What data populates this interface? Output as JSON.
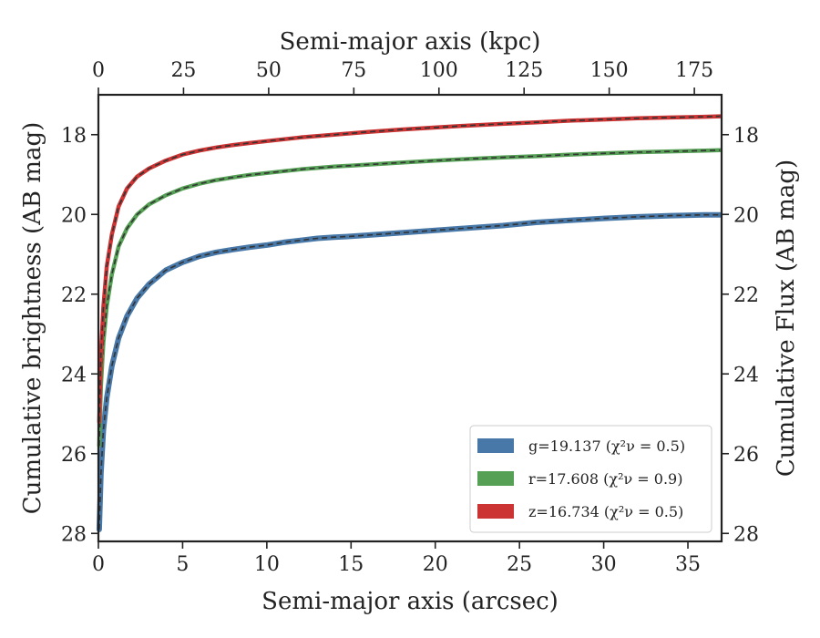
{
  "chart_data": {
    "type": "line",
    "xlabel": "Semi-major axis (arcsec)",
    "x2label": "Semi-major axis (kpc)",
    "ylabel": "Cumulative brightness (AB mag)",
    "y2label": "Cumulative Flux (AB mag)",
    "xlim": [
      0,
      37
    ],
    "x2lim": [
      0,
      183
    ],
    "ylim": [
      28.2,
      17.0
    ],
    "y_inverted": true,
    "xticks": [
      0,
      5,
      10,
      15,
      20,
      25,
      30,
      35
    ],
    "x2ticks": [
      0,
      25,
      50,
      75,
      100,
      125,
      150,
      175
    ],
    "yticks": [
      18,
      20,
      22,
      24,
      26,
      28
    ],
    "legend_position": "lower-right",
    "grid": false,
    "model_line": {
      "style": "dashed",
      "color": "#333333"
    },
    "series": [
      {
        "name": "g=19.137",
        "chi_label": "(χ²ν = 0.5)",
        "color": "#4878a8",
        "x": [
          0.05,
          0.15,
          0.3,
          0.5,
          0.8,
          1.2,
          1.7,
          2.3,
          3.0,
          4.0,
          5.0,
          6.0,
          7.0,
          8.0,
          9.0,
          10.0,
          11.0,
          12.0,
          13.0,
          14.0,
          15.0,
          16.0,
          18.0,
          20.0,
          22.0,
          24.0,
          26.0,
          28.0,
          30.0,
          32.0,
          34.0,
          36.0,
          36.9
        ],
        "y": [
          27.9,
          26.5,
          25.4,
          24.6,
          23.8,
          23.1,
          22.55,
          22.1,
          21.75,
          21.4,
          21.2,
          21.05,
          20.95,
          20.88,
          20.82,
          20.77,
          20.7,
          20.65,
          20.6,
          20.57,
          20.55,
          20.52,
          20.46,
          20.4,
          20.34,
          20.28,
          20.2,
          20.15,
          20.1,
          20.06,
          20.03,
          20.01,
          20.01
        ]
      },
      {
        "name": "r=17.608",
        "chi_label": "(χ²ν = 0.9)",
        "color": "#55a055",
        "x": [
          0.05,
          0.15,
          0.3,
          0.5,
          0.8,
          1.2,
          1.7,
          2.3,
          3.0,
          4.0,
          5.0,
          6.0,
          7.0,
          8.0,
          9.0,
          10.0,
          12.0,
          14.0,
          16.0,
          18.0,
          20.0,
          22.0,
          24.0,
          26.0,
          28.0,
          30.0,
          32.0,
          34.0,
          36.0,
          36.9
        ],
        "y": [
          25.8,
          24.3,
          23.2,
          22.3,
          21.5,
          20.8,
          20.35,
          20.0,
          19.75,
          19.52,
          19.35,
          19.23,
          19.14,
          19.07,
          19.01,
          18.96,
          18.87,
          18.8,
          18.75,
          18.7,
          18.65,
          18.61,
          18.57,
          18.54,
          18.5,
          18.47,
          18.44,
          18.42,
          18.4,
          18.39
        ]
      },
      {
        "name": "z=16.734",
        "chi_label": "(χ²ν = 0.5)",
        "color": "#cc3333",
        "x": [
          0.05,
          0.15,
          0.3,
          0.5,
          0.8,
          1.2,
          1.7,
          2.3,
          3.0,
          4.0,
          5.0,
          6.0,
          7.0,
          8.0,
          9.0,
          10.0,
          12.0,
          14.0,
          16.0,
          18.0,
          20.0,
          22.0,
          24.0,
          26.0,
          28.0,
          30.0,
          32.0,
          34.0,
          36.0,
          36.9
        ],
        "y": [
          25.2,
          23.5,
          22.3,
          21.3,
          20.5,
          19.8,
          19.35,
          19.05,
          18.85,
          18.65,
          18.5,
          18.4,
          18.32,
          18.26,
          18.21,
          18.16,
          18.07,
          18.0,
          17.93,
          17.87,
          17.82,
          17.77,
          17.73,
          17.69,
          17.65,
          17.62,
          17.59,
          17.57,
          17.55,
          17.54
        ]
      }
    ]
  }
}
